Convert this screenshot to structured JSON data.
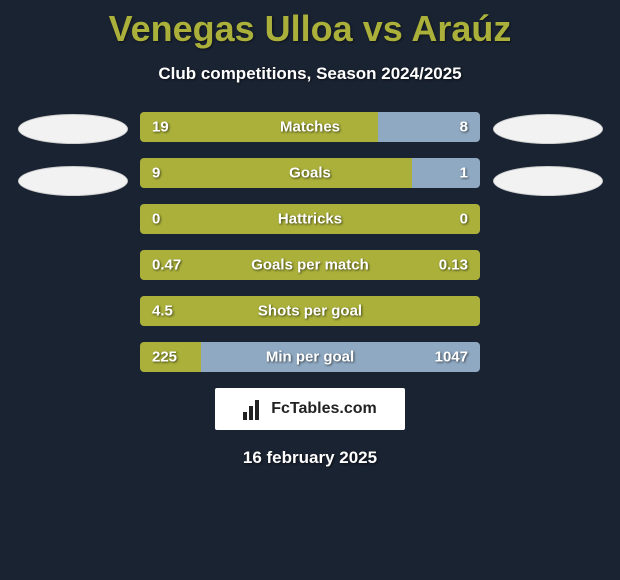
{
  "title": "Venegas Ulloa vs Araúz",
  "subtitle": "Club competitions, Season 2024/2025",
  "date": "16 february 2025",
  "logo_text": "FcTables.com",
  "colors": {
    "background": "#1a2332",
    "title": "#aab03a",
    "bar_left": "#aab03a",
    "bar_right": "#8fa9c2",
    "logo_bg": "#ffffff",
    "logo_text": "#222222",
    "flag_bg": "#f2f2f2",
    "text": "#ffffff"
  },
  "flags_per_side": 2,
  "stats": [
    {
      "label": "Matches",
      "left_val": "19",
      "right_val": "8",
      "left_pct": 70,
      "right_pct": 30
    },
    {
      "label": "Goals",
      "left_val": "9",
      "right_val": "1",
      "left_pct": 80,
      "right_pct": 20
    },
    {
      "label": "Hattricks",
      "left_val": "0",
      "right_val": "0",
      "left_pct": 100,
      "right_pct": 0
    },
    {
      "label": "Goals per match",
      "left_val": "0.47",
      "right_val": "0.13",
      "left_pct": 100,
      "right_pct": 0
    },
    {
      "label": "Shots per goal",
      "left_val": "4.5",
      "right_val": "",
      "left_pct": 100,
      "right_pct": 0
    },
    {
      "label": "Min per goal",
      "left_val": "225",
      "right_val": "1047",
      "left_pct": 18,
      "right_pct": 82
    }
  ]
}
